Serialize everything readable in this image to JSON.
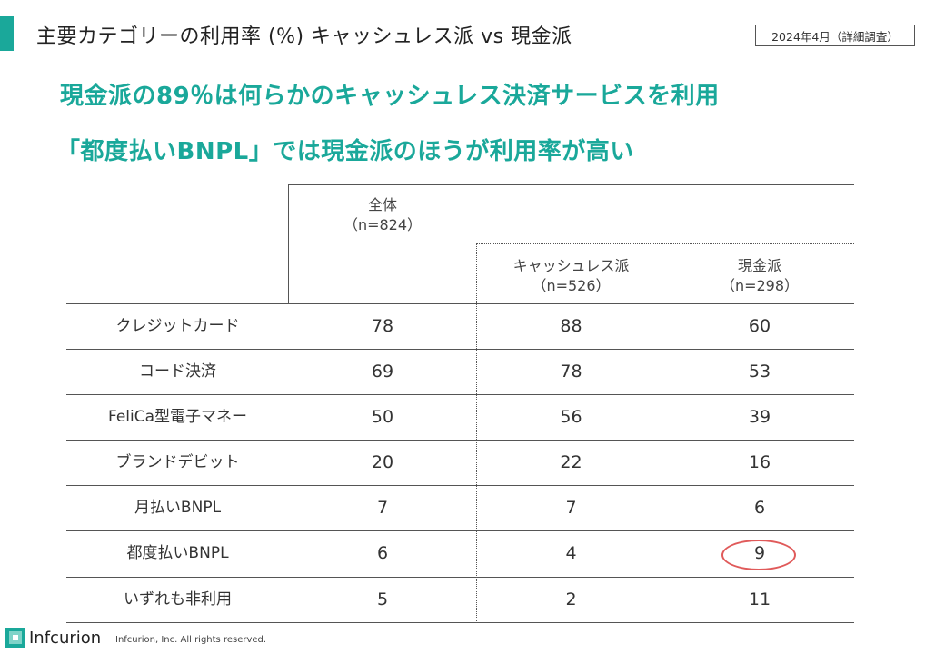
{
  "header": {
    "title": "主要カテゴリーの利用率 (%)  キャッシュレス派 vs 現金派",
    "date_badge": "2024年4月（詳細調査）"
  },
  "headlines": [
    "現金派の89％は何らかのキャッシュレス決済サービスを利用",
    "「都度払いBNPL」では現金派のほうが利用率が高い"
  ],
  "table": {
    "columns": [
      {
        "name": "全体",
        "n": "（n=824）"
      },
      {
        "name": "キャッシュレス派",
        "n": "（n=526）"
      },
      {
        "name": "現金派",
        "n": "（n=298）"
      }
    ],
    "rows": [
      {
        "label": "クレジットカード",
        "values": [
          "78",
          "88",
          "60"
        ]
      },
      {
        "label": "コード決済",
        "values": [
          "69",
          "78",
          "53"
        ]
      },
      {
        "label": "FeliCa型電子マネー",
        "values": [
          "50",
          "56",
          "39"
        ]
      },
      {
        "label": "ブランドデビット",
        "values": [
          "20",
          "22",
          "16"
        ]
      },
      {
        "label": "月払いBNPL",
        "values": [
          "7",
          "7",
          "6"
        ]
      },
      {
        "label": "都度払いBNPL",
        "values": [
          "6",
          "4",
          "9"
        ]
      },
      {
        "label": "いずれも非利用",
        "values": [
          "5",
          "2",
          "11"
        ]
      }
    ],
    "highlight": {
      "row": 5,
      "col": 2,
      "color": "#e05a5a"
    }
  },
  "footer": {
    "logo_text": "Infcurion",
    "copyright": "Infcurion, Inc.  All rights reserved."
  },
  "colors": {
    "accent": "#1aa89a",
    "highlight": "#e05a5a"
  }
}
